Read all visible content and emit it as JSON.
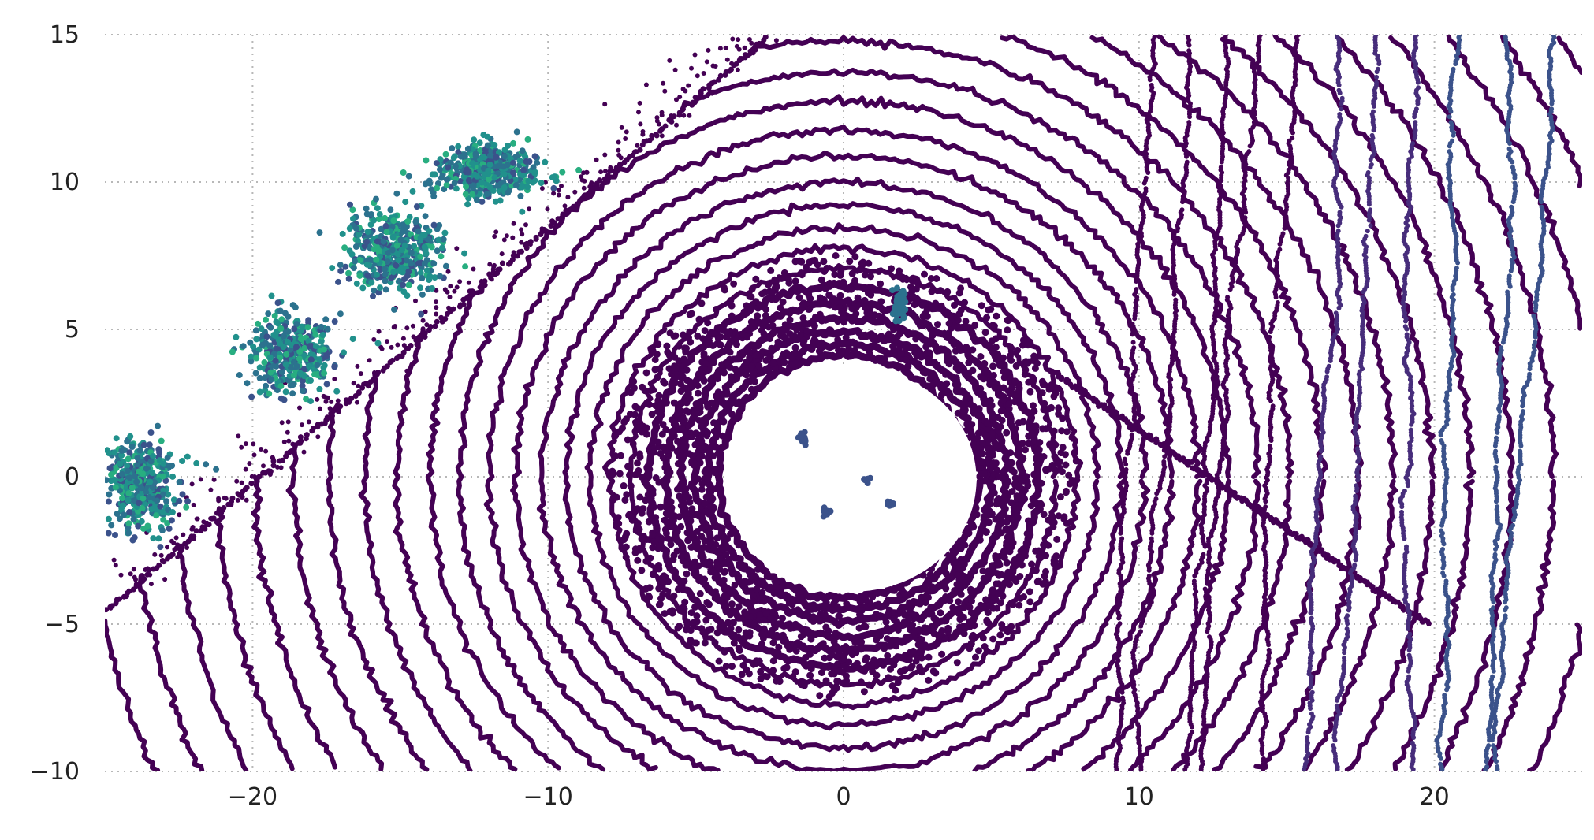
{
  "chart_data": {
    "type": "scatter",
    "title": "",
    "xlabel": "",
    "ylabel": "",
    "xlim": [
      -25,
      25
    ],
    "ylim": [
      -10,
      15
    ],
    "grid": true,
    "legend": "none",
    "colormap": "viridis",
    "x_ticks": [
      -20,
      -10,
      0,
      10,
      20
    ],
    "y_ticks": [
      -10,
      -5,
      0,
      5,
      10,
      15
    ],
    "x_tick_labels": [
      "−20",
      "−10",
      "0",
      "10",
      "20"
    ],
    "y_tick_labels": [
      "−10",
      "−5",
      "0",
      "5",
      "10",
      "15"
    ],
    "colors": {
      "ground": "#440154",
      "low": "#3b528b",
      "mid": "#2c728e",
      "high": "#21918c",
      "top": "#28ae80",
      "grid": "#b8b8b8",
      "background": "#ffffff"
    },
    "scan_center": [
      0,
      0
    ],
    "rings": {
      "radii": [
        4.2,
        4.6,
        5.0,
        5.5,
        6.0,
        6.6,
        7.2,
        7.9,
        8.6,
        9.4,
        10.2,
        11.1,
        12.0,
        13.0,
        14.0,
        15.1,
        16.2,
        17.4,
        18.6,
        19.9,
        21.2,
        22.6,
        24.0,
        25.5,
        27.0,
        28.6,
        30.2
      ]
    },
    "boundary_lines": [
      {
        "name": "left-wall",
        "from": [
          -25,
          -4.6
        ],
        "to": [
          -2.5,
          15
        ]
      },
      {
        "name": "right-wall",
        "from": [
          7.0,
          3.6
        ],
        "to": [
          19.8,
          -5.0
        ]
      }
    ],
    "vegetation_clusters": [
      {
        "center": [
          -23.8,
          -0.3
        ],
        "spread": [
          1.2,
          1.3
        ],
        "count": 420
      },
      {
        "center": [
          -18.6,
          4.2
        ],
        "spread": [
          1.3,
          1.2
        ],
        "count": 380
      },
      {
        "center": [
          -15.3,
          7.7
        ],
        "spread": [
          1.5,
          1.3
        ],
        "count": 420
      },
      {
        "center": [
          -12.0,
          10.4
        ],
        "spread": [
          1.6,
          0.8
        ],
        "count": 420
      }
    ],
    "object_clusters": [
      {
        "center": [
          1.9,
          5.8
        ],
        "spread": [
          0.2,
          0.5
        ],
        "count": 60
      },
      {
        "center": [
          -1.4,
          1.3
        ],
        "spread": [
          0.15,
          0.2
        ],
        "count": 25
      },
      {
        "center": [
          -0.6,
          -1.2
        ],
        "spread": [
          0.12,
          0.15
        ],
        "count": 15
      },
      {
        "center": [
          1.6,
          -0.9
        ],
        "spread": [
          0.12,
          0.12
        ],
        "count": 12
      },
      {
        "center": [
          0.8,
          -0.1
        ],
        "spread": [
          0.08,
          0.08
        ],
        "count": 8
      }
    ],
    "right_columns": {
      "x_values": [
        10.5,
        11.7,
        12.9,
        14.1,
        15.4,
        16.7,
        18.0,
        19.4,
        20.9,
        22.4,
        24.0
      ],
      "y_range": [
        -10,
        15
      ]
    }
  }
}
